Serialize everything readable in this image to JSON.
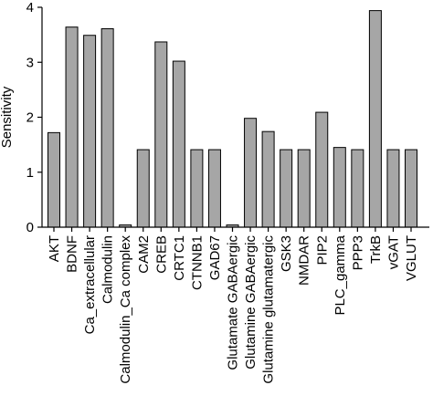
{
  "chart_data": {
    "type": "bar",
    "title": "",
    "xlabel": "",
    "ylabel": "Sensitivity",
    "ylim": [
      0,
      4
    ],
    "yticks": [
      0,
      1,
      2,
      3,
      4
    ],
    "grid": false,
    "legend": "none",
    "categories": [
      "AKT",
      "BDNF",
      "Ca_extracellular",
      "Calmodulin",
      "Calmodulin_Ca complex",
      "CAM2",
      "CREB",
      "CRTC1",
      "CTNNB1",
      "GAD67",
      "Glutamate GABAergic",
      "Glutamine GABAergic",
      "Glutamine glutamatergic",
      "GSK3",
      "NMDAR",
      "PIP2",
      "PLC_gamma",
      "PPP3",
      "TrkB",
      "vGAT",
      "VGLUT"
    ],
    "values": [
      1.72,
      3.64,
      3.49,
      3.61,
      0.04,
      1.41,
      3.37,
      3.02,
      1.41,
      1.41,
      0.04,
      1.98,
      1.74,
      1.41,
      1.41,
      2.09,
      1.45,
      1.41,
      3.94,
      1.41,
      1.41
    ],
    "colors": {
      "bar_fill": "#a6a6a6",
      "bar_stroke": "#000000",
      "axis": "#000000"
    }
  }
}
